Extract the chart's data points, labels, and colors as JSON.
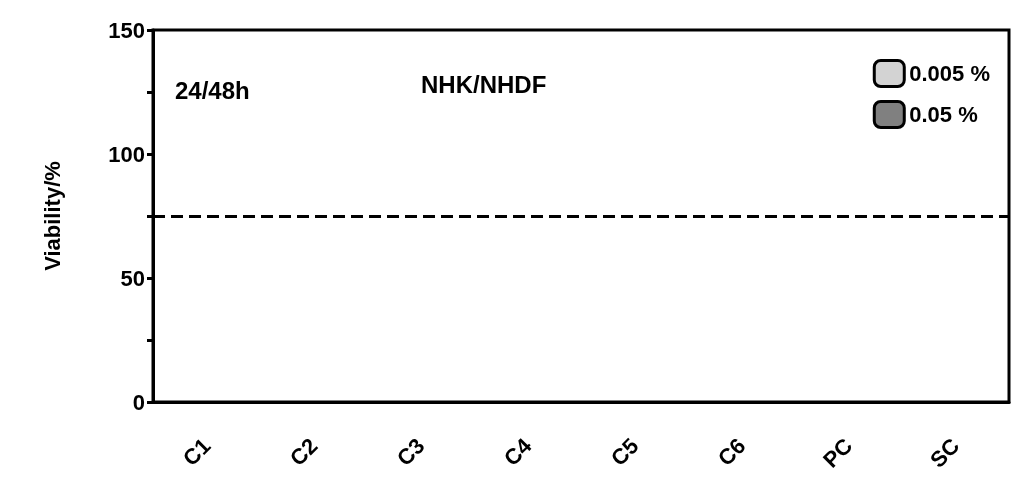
{
  "chart_data": {
    "type": "bar",
    "ylabel": "Viability/%",
    "categories": [
      "C1",
      "C2",
      "C3",
      "C4",
      "C5",
      "C6",
      "PC",
      "SC"
    ],
    "series": [
      {
        "name": "0.005 %",
        "color": "#d3d3d3",
        "values": [
          null,
          null,
          null,
          null,
          null,
          null,
          null,
          null
        ]
      },
      {
        "name": "0.05 %",
        "color": "#808080",
        "values": [
          null,
          null,
          null,
          null,
          null,
          null,
          null,
          null
        ]
      }
    ],
    "ylim": [
      0,
      150
    ],
    "yticks": [
      0,
      {
        "value": 25,
        "label": null
      },
      50,
      {
        "value": 75,
        "label": null
      },
      100,
      {
        "value": 125,
        "label": null
      },
      150
    ],
    "ref_lines": [
      {
        "axis": "y",
        "value": 75,
        "color": "#000000",
        "line_style": "dashed"
      }
    ],
    "annotations": [
      "24/48h",
      "NHK/NHDF"
    ],
    "legend": "top right",
    "grid": false
  }
}
